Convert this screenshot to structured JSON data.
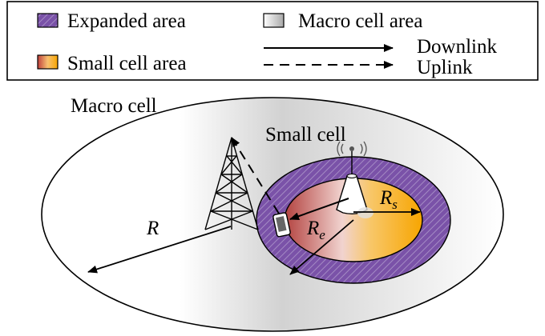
{
  "legend": {
    "expanded_area": "Expanded area",
    "macro_cell_area": "Macro cell area",
    "small_cell_area": "Small cell area",
    "downlink": "Downlink",
    "uplink": "Uplink"
  },
  "diagram": {
    "macro_cell_label": "Macro cell",
    "small_cell_label": "Small cell",
    "radius_macro": "R",
    "radius_expanded_base": "R",
    "radius_expanded_sub": "e",
    "radius_small_base": "R",
    "radius_small_sub": "s"
  },
  "colors": {
    "expanded_purple": "#7b4fa6",
    "small_cell_orange": "#f7a800",
    "small_cell_red": "#b8433e",
    "macro_gray": "#c8c8c8",
    "line": "#000000"
  }
}
